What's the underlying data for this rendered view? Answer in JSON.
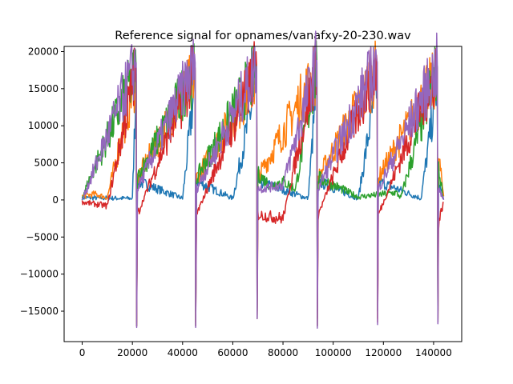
{
  "chart_data": {
    "type": "line",
    "title": "Reference signal for opnames/vanafxy-20-230.wav",
    "xlabel": "",
    "ylabel": "",
    "xlim": [
      -7200,
      151200
    ],
    "ylim": [
      -19100,
      20700
    ],
    "x_ticks": [
      0,
      20000,
      40000,
      60000,
      80000,
      100000,
      120000,
      140000
    ],
    "x_tick_labels": [
      "0",
      "20000",
      "40000",
      "60000",
      "80000",
      "100000",
      "120000",
      "140000"
    ],
    "y_ticks": [
      -15000,
      -10000,
      -5000,
      0,
      5000,
      10000,
      15000,
      20000
    ],
    "y_tick_labels": [
      "−15000",
      "−10000",
      "−5000",
      "0",
      "5000",
      "10000",
      "15000",
      "20000"
    ],
    "grid": false,
    "legend": false,
    "colors": [
      "#1f77b4",
      "#ff7f0e",
      "#2ca02c",
      "#d62728",
      "#9467bd"
    ],
    "series": [
      {
        "color": "#1f77b4",
        "x": [
          0,
          20000,
          21500,
          21700,
          22000,
          40000,
          45000,
          45200,
          45600,
          60000,
          69500,
          69700,
          70000,
          90000,
          93500,
          93700,
          94000,
          110000,
          117500,
          117700,
          118000,
          135000,
          141500,
          141700,
          142000,
          144000
        ],
        "y": [
          300,
          200,
          16000,
          -15000,
          2500,
          200,
          16000,
          -15000,
          2500,
          200,
          16000,
          -15000,
          2500,
          200,
          16000,
          -15000,
          2500,
          200,
          16000,
          -15000,
          2500,
          200,
          16000,
          -15000,
          2000,
          300
        ]
      },
      {
        "color": "#ff7f0e",
        "x": [
          0,
          5000,
          10000,
          21500,
          21700,
          22000,
          45000,
          45200,
          45600,
          69500,
          69700,
          70000,
          93500,
          93700,
          94000,
          117500,
          117700,
          118000,
          141500,
          141700,
          142000,
          144000
        ],
        "y": [
          500,
          800,
          300,
          17000,
          -16500,
          3000,
          17000,
          -16500,
          3000,
          16500,
          -15500,
          3000,
          17500,
          -16000,
          3000,
          17500,
          -16000,
          3000,
          17000,
          -16000,
          6000,
          500
        ]
      },
      {
        "color": "#2ca02c",
        "x": [
          0,
          21500,
          21700,
          22000,
          45000,
          45200,
          45600,
          69500,
          69700,
          70000,
          75000,
          80000,
          85000,
          93500,
          93700,
          94000,
          110000,
          125000,
          127000,
          141500,
          141700,
          142000,
          144000
        ],
        "y": [
          400,
          17500,
          -17000,
          3000,
          17500,
          -17000,
          3000,
          17500,
          -16000,
          3500,
          2000,
          2500,
          1500,
          18500,
          -17000,
          3000,
          400,
          1000,
          300,
          18000,
          -16500,
          4000,
          400
        ]
      },
      {
        "color": "#d62728",
        "x": [
          0,
          10000,
          21500,
          21700,
          22000,
          45000,
          45200,
          45600,
          69500,
          69700,
          70000,
          80000,
          93500,
          93700,
          94000,
          117500,
          117700,
          118000,
          141500,
          141700,
          142000,
          144000
        ],
        "y": [
          -300,
          -800,
          17800,
          -17000,
          -2000,
          17800,
          -17000,
          -2000,
          17800,
          -16000,
          -2000,
          -2500,
          18500,
          -17000,
          -2000,
          18500,
          -16500,
          -2000,
          17800,
          -16500,
          -3000,
          -300
        ]
      },
      {
        "color": "#9467bd",
        "x": [
          0,
          21500,
          21700,
          22000,
          45000,
          45200,
          45600,
          69500,
          69700,
          70000,
          80000,
          93500,
          93700,
          94000,
          117500,
          117700,
          118000,
          141500,
          141700,
          142000,
          144000
        ],
        "y": [
          0,
          18500,
          -17200,
          1500,
          18500,
          -17200,
          1500,
          18000,
          -16000,
          1500,
          2000,
          18800,
          -17300,
          1500,
          18600,
          -16800,
          1500,
          18000,
          -16700,
          1500,
          0
        ]
      }
    ]
  }
}
